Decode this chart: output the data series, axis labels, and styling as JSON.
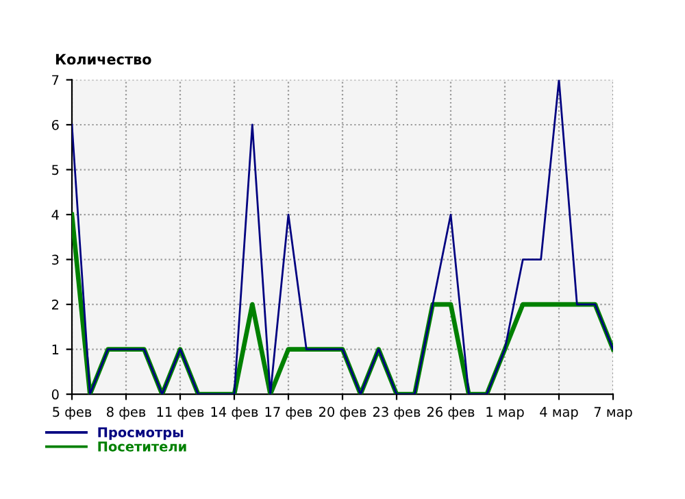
{
  "chart_data": {
    "type": "line",
    "ylabel": "Количество",
    "categories": [
      "5 фев",
      null,
      null,
      "8 фев",
      null,
      null,
      "11 фев",
      null,
      null,
      "14 фев",
      null,
      null,
      "17 фев",
      null,
      null,
      "20 фев",
      null,
      null,
      "23 фев",
      null,
      null,
      "26 фев",
      null,
      null,
      "1 мар",
      null,
      null,
      "4 мар",
      null,
      null,
      "7 мар"
    ],
    "series": [
      {
        "name": "Просмотры",
        "color": "#000080",
        "values": [
          6,
          0,
          1,
          1,
          1,
          0,
          1,
          0,
          0,
          0,
          6,
          0,
          4,
          1,
          1,
          1,
          0,
          1,
          0,
          0,
          2,
          4,
          0,
          0,
          1,
          3,
          3,
          7,
          2,
          2,
          1
        ]
      },
      {
        "name": "Посетители",
        "color": "#008000",
        "values": [
          4,
          0,
          1,
          1,
          1,
          0,
          1,
          0,
          0,
          0,
          2,
          0,
          1,
          1,
          1,
          1,
          0,
          1,
          0,
          0,
          2,
          2,
          0,
          0,
          1,
          2,
          2,
          2,
          2,
          2,
          1
        ]
      }
    ],
    "ylim": [
      0,
      7
    ],
    "yticks": [
      0,
      1,
      2,
      3,
      4,
      5,
      6,
      7
    ],
    "grid": true,
    "legend": "bottom left",
    "marker": "none",
    "line_style": "solid"
  }
}
